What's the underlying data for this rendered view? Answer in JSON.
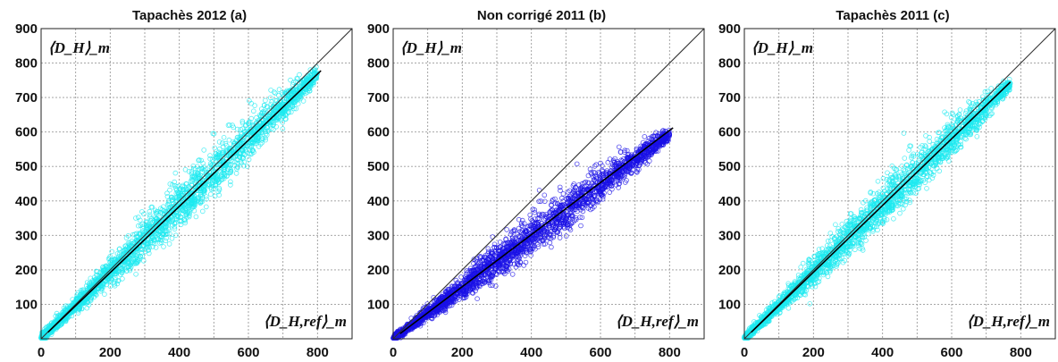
{
  "chart_data": [
    {
      "type": "scatter",
      "title": "Tapachès 2012 (a)",
      "ylabel": "⟨D_H⟩_m",
      "xlabel": "⟨D_H,ref⟩_m",
      "xlim": [
        0,
        900
      ],
      "ylim": [
        0,
        900
      ],
      "xticks": [
        "0",
        "200",
        "400",
        "600",
        "800"
      ],
      "yticks": [
        "100",
        "200",
        "300",
        "400",
        "500",
        "600",
        "700",
        "800",
        "900"
      ],
      "grid": true,
      "color": "#1de9f0",
      "series": [
        {
          "x": [
            0,
            100,
            200,
            300,
            400,
            500,
            600,
            700,
            800
          ],
          "y": [
            0,
            96,
            192,
            288,
            384,
            480,
            576,
            672,
            768
          ]
        }
      ],
      "spread": [
        10,
        22,
        38,
        52,
        62,
        65,
        55,
        40,
        20
      ],
      "fit_line": {
        "x": [
          20,
          810
        ],
        "y": [
          19,
          778
        ]
      },
      "identity_line": true
    },
    {
      "type": "scatter",
      "title": "Non corrigé 2011 (b)",
      "ylabel": "⟨D_H⟩_m",
      "xlabel": "⟨D_H,ref⟩_m",
      "xlim": [
        0,
        900
      ],
      "ylim": [
        0,
        900
      ],
      "xticks": [
        "0",
        "200",
        "400",
        "600",
        "800"
      ],
      "yticks": [
        "100",
        "200",
        "300",
        "400",
        "500",
        "600",
        "700",
        "800",
        "900"
      ],
      "grid": true,
      "color": "#1a10e6",
      "series": [
        {
          "x": [
            0,
            100,
            200,
            300,
            400,
            500,
            600,
            700,
            800
          ],
          "y": [
            0,
            74,
            148,
            222,
            296,
            370,
            444,
            518,
            592
          ]
        }
      ],
      "spread": [
        8,
        18,
        32,
        45,
        55,
        55,
        45,
        32,
        15
      ],
      "fit_line": {
        "x": [
          20,
          810
        ],
        "y": [
          15,
          612
        ]
      },
      "identity_line": true
    },
    {
      "type": "scatter",
      "title": "Tapachès 2011 (c)",
      "ylabel": "⟨D_H⟩_m",
      "xlabel": "⟨D_H,ref⟩_m",
      "xlim": [
        0,
        900
      ],
      "ylim": [
        0,
        900
      ],
      "xticks": [
        "0",
        "200",
        "400",
        "600",
        "800"
      ],
      "yticks": [
        "100",
        "200",
        "300",
        "400",
        "500",
        "600",
        "700",
        "800",
        "900"
      ],
      "grid": true,
      "color": "#1de9f0",
      "series": [
        {
          "x": [
            0,
            100,
            200,
            300,
            400,
            500,
            600,
            700,
            770
          ],
          "y": [
            0,
            96,
            192,
            288,
            384,
            480,
            576,
            672,
            740
          ]
        }
      ],
      "spread": [
        8,
        20,
        35,
        48,
        55,
        55,
        48,
        35,
        15
      ],
      "fit_line": {
        "x": [
          20,
          770
        ],
        "y": [
          19,
          745
        ]
      },
      "identity_line": true
    }
  ]
}
